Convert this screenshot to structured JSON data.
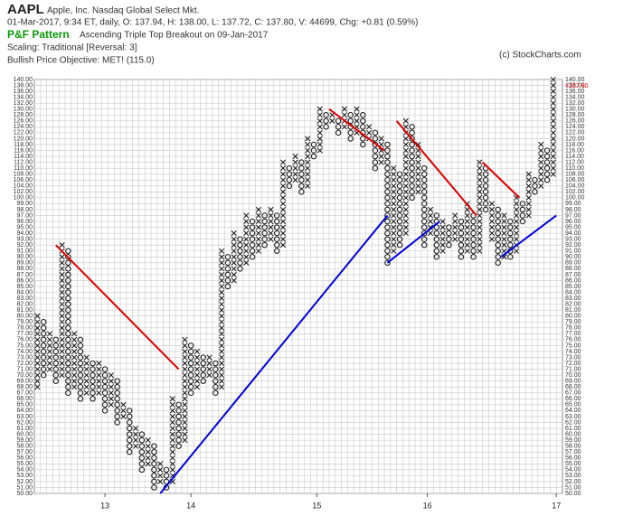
{
  "header": {
    "symbol": "AAPL",
    "company": "Apple, Inc.  Nasdaq Global Select Mkt.",
    "quote": "01-Mar-2017, 9:34 ET, daily, O: 137.94, H: 138.00, L: 137.72, C: 137.80, V: 44699, Chg: +0.81 (0.59%)",
    "pattern_label": "P&F Pattern",
    "pattern": "Ascending Triple Top Breakout on 09-Jan-2017",
    "scaling": "Scaling: Traditional [Reversal: 3]",
    "objective": "Bullish Price Objective: MET! (115.0)",
    "copyright": "(c) StockCharts.com"
  },
  "chart_data": {
    "type": "pnf",
    "x_color": "#111",
    "o_color": "#111",
    "grid": true,
    "last_price": {
      "value": 137.8,
      "label": "<137.80",
      "color": "#e00"
    },
    "xlim": [
      0,
      86
    ],
    "xticks": [
      {
        "value": 11.5,
        "label": "13"
      },
      {
        "value": 25.5,
        "label": "14"
      },
      {
        "value": 46,
        "label": "15"
      },
      {
        "value": 64,
        "label": "16"
      },
      {
        "value": 85,
        "label": "17"
      }
    ],
    "ylim": [
      50,
      140
    ],
    "yticks": [
      {
        "value": 50,
        "label": "50.00"
      },
      {
        "value": 51,
        "label": "51.00"
      },
      {
        "value": 52,
        "label": "52.00"
      },
      {
        "value": 53,
        "label": "53.00"
      },
      {
        "value": 54,
        "label": "54.00"
      },
      {
        "value": 55,
        "label": "55.00"
      },
      {
        "value": 56,
        "label": "56.00"
      },
      {
        "value": 57,
        "label": "57.00"
      },
      {
        "value": 58,
        "label": "58.00"
      },
      {
        "value": 59,
        "label": "59.00"
      },
      {
        "value": 60,
        "label": "60.00"
      },
      {
        "value": 61,
        "label": "61.00"
      },
      {
        "value": 62,
        "label": "62.00"
      },
      {
        "value": 63,
        "label": "63.00"
      },
      {
        "value": 64,
        "label": "64.00"
      },
      {
        "value": 65,
        "label": "65.00"
      },
      {
        "value": 66,
        "label": "66.00"
      },
      {
        "value": 67,
        "label": "67.00"
      },
      {
        "value": 68,
        "label": "68.00"
      },
      {
        "value": 69,
        "label": "69.00"
      },
      {
        "value": 70,
        "label": "70.00"
      },
      {
        "value": 71,
        "label": "71.00"
      },
      {
        "value": 72,
        "label": "72.00"
      },
      {
        "value": 73,
        "label": "73.00"
      },
      {
        "value": 74,
        "label": "74.00"
      },
      {
        "value": 75,
        "label": "75.00"
      },
      {
        "value": 76,
        "label": "76.00"
      },
      {
        "value": 77,
        "label": "77.00"
      },
      {
        "value": 78,
        "label": "78.00"
      },
      {
        "value": 79,
        "label": "79.00"
      },
      {
        "value": 80,
        "label": "80.00"
      },
      {
        "value": 81,
        "label": "81.00"
      },
      {
        "value": 82,
        "label": "82.00"
      },
      {
        "value": 83,
        "label": "83.00"
      },
      {
        "value": 84,
        "label": "84.00"
      },
      {
        "value": 85,
        "label": "85.00"
      },
      {
        "value": 86,
        "label": "86.00"
      },
      {
        "value": 87,
        "label": "87.00"
      },
      {
        "value": 88,
        "label": "88.00"
      },
      {
        "value": 89,
        "label": "89.00"
      },
      {
        "value": 90,
        "label": "90.00"
      },
      {
        "value": 91,
        "label": "91.00"
      },
      {
        "value": 92,
        "label": "92.00"
      },
      {
        "value": 93,
        "label": "93.00"
      },
      {
        "value": 94,
        "label": "94.00"
      },
      {
        "value": 95,
        "label": "95.00"
      },
      {
        "value": 96,
        "label": "96.00"
      },
      {
        "value": 97,
        "label": "97.00"
      },
      {
        "value": 98,
        "label": "98.00"
      },
      {
        "value": 99,
        "label": "99.00"
      },
      {
        "value": 100,
        "label": "100.00"
      },
      {
        "value": 102,
        "label": "102.00"
      },
      {
        "value": 104,
        "label": "104.00"
      },
      {
        "value": 106,
        "label": "106.00"
      },
      {
        "value": 108,
        "label": "108.00"
      },
      {
        "value": 110,
        "label": "110.00"
      },
      {
        "value": 112,
        "label": "112.00"
      },
      {
        "value": 114,
        "label": "114.00"
      },
      {
        "value": 116,
        "label": "116.00"
      },
      {
        "value": 118,
        "label": "118.00"
      },
      {
        "value": 120,
        "label": "120.00"
      },
      {
        "value": 122,
        "label": "122.00"
      },
      {
        "value": 124,
        "label": "124.00"
      },
      {
        "value": 126,
        "label": "126.00"
      },
      {
        "value": 128,
        "label": "128.00"
      },
      {
        "value": 130,
        "label": "130.00"
      },
      {
        "value": 132,
        "label": "132.00"
      },
      {
        "value": 134,
        "label": "134.00"
      },
      {
        "value": 136,
        "label": "136.00"
      },
      {
        "value": 138,
        "label": "138.00"
      },
      {
        "value": 140,
        "label": "140.00"
      }
    ],
    "columns": [
      {
        "kind": "X",
        "low": 68,
        "high": 80
      },
      {
        "kind": "O",
        "low": 70,
        "high": 79
      },
      {
        "kind": "X",
        "low": 71,
        "high": 77
      },
      {
        "kind": "O",
        "low": 69,
        "high": 76
      },
      {
        "kind": "X",
        "low": 70,
        "high": 92
      },
      {
        "kind": "O",
        "low": 67,
        "high": 91
      },
      {
        "kind": "X",
        "low": 68,
        "high": 77
      },
      {
        "kind": "O",
        "low": 66,
        "high": 76
      },
      {
        "kind": "X",
        "low": 67,
        "high": 73
      },
      {
        "kind": "O",
        "low": 66,
        "high": 72
      },
      {
        "kind": "X",
        "low": 67,
        "high": 72
      },
      {
        "kind": "O",
        "low": 64,
        "high": 71
      },
      {
        "kind": "X",
        "low": 65,
        "high": 70
      },
      {
        "kind": "O",
        "low": 62,
        "high": 69
      },
      {
        "kind": "X",
        "low": 63,
        "high": 65
      },
      {
        "kind": "O",
        "low": 57,
        "high": 64
      },
      {
        "kind": "X",
        "low": 58,
        "high": 61
      },
      {
        "kind": "O",
        "low": 54,
        "high": 60
      },
      {
        "kind": "X",
        "low": 55,
        "high": 59
      },
      {
        "kind": "O",
        "low": 51,
        "high": 58
      },
      {
        "kind": "X",
        "low": 52,
        "high": 55
      },
      {
        "kind": "O",
        "low": 51,
        "high": 54
      },
      {
        "kind": "X",
        "low": 52,
        "high": 66
      },
      {
        "kind": "O",
        "low": 58,
        "high": 65
      },
      {
        "kind": "X",
        "low": 59,
        "high": 76
      },
      {
        "kind": "O",
        "low": 67,
        "high": 75
      },
      {
        "kind": "X",
        "low": 68,
        "high": 74
      },
      {
        "kind": "O",
        "low": 69,
        "high": 73
      },
      {
        "kind": "X",
        "low": 70,
        "high": 73
      },
      {
        "kind": "O",
        "low": 67,
        "high": 72
      },
      {
        "kind": "X",
        "low": 68,
        "high": 91
      },
      {
        "kind": "O",
        "low": 85,
        "high": 90
      },
      {
        "kind": "X",
        "low": 86,
        "high": 94
      },
      {
        "kind": "O",
        "low": 88,
        "high": 93
      },
      {
        "kind": "X",
        "low": 89,
        "high": 97
      },
      {
        "kind": "O",
        "low": 90,
        "high": 96
      },
      {
        "kind": "X",
        "low": 91,
        "high": 98
      },
      {
        "kind": "O",
        "low": 92,
        "high": 97
      },
      {
        "kind": "X",
        "low": 93,
        "high": 98
      },
      {
        "kind": "O",
        "low": 91,
        "high": 97
      },
      {
        "kind": "X",
        "low": 92,
        "high": 112
      },
      {
        "kind": "O",
        "low": 104,
        "high": 110
      },
      {
        "kind": "X",
        "low": 106,
        "high": 114
      },
      {
        "kind": "O",
        "low": 102,
        "high": 112
      },
      {
        "kind": "X",
        "low": 104,
        "high": 120
      },
      {
        "kind": "O",
        "low": 114,
        "high": 118
      },
      {
        "kind": "X",
        "low": 116,
        "high": 130
      },
      {
        "kind": "O",
        "low": 124,
        "high": 128
      },
      {
        "kind": "X",
        "low": 126,
        "high": 128
      },
      {
        "kind": "O",
        "low": 122,
        "high": 126
      },
      {
        "kind": "X",
        "low": 124,
        "high": 130
      },
      {
        "kind": "O",
        "low": 120,
        "high": 128
      },
      {
        "kind": "X",
        "low": 122,
        "high": 130
      },
      {
        "kind": "O",
        "low": 118,
        "high": 128
      },
      {
        "kind": "X",
        "low": 120,
        "high": 124
      },
      {
        "kind": "O",
        "low": 110,
        "high": 122
      },
      {
        "kind": "X",
        "low": 112,
        "high": 120
      },
      {
        "kind": "O",
        "low": 89,
        "high": 118
      },
      {
        "kind": "X",
        "low": 91,
        "high": 110
      },
      {
        "kind": "O",
        "low": 92,
        "high": 108
      },
      {
        "kind": "X",
        "low": 94,
        "high": 126
      },
      {
        "kind": "O",
        "low": 100,
        "high": 124
      },
      {
        "kind": "X",
        "low": 102,
        "high": 118
      },
      {
        "kind": "O",
        "low": 92,
        "high": 110
      },
      {
        "kind": "X",
        "low": 94,
        "high": 98
      },
      {
        "kind": "O",
        "low": 90,
        "high": 97
      },
      {
        "kind": "X",
        "low": 91,
        "high": 96
      },
      {
        "kind": "O",
        "low": 92,
        "high": 95
      },
      {
        "kind": "X",
        "low": 93,
        "high": 97
      },
      {
        "kind": "O",
        "low": 90,
        "high": 96
      },
      {
        "kind": "X",
        "low": 91,
        "high": 99
      },
      {
        "kind": "O",
        "low": 90,
        "high": 97
      },
      {
        "kind": "X",
        "low": 91,
        "high": 112
      },
      {
        "kind": "O",
        "low": 98,
        "high": 110
      },
      {
        "kind": "X",
        "low": 93,
        "high": 99
      },
      {
        "kind": "O",
        "low": 89,
        "high": 98
      },
      {
        "kind": "X",
        "low": 90,
        "high": 97
      },
      {
        "kind": "O",
        "low": 90,
        "high": 96
      },
      {
        "kind": "X",
        "low": 91,
        "high": 100
      },
      {
        "kind": "O",
        "low": 96,
        "high": 99
      },
      {
        "kind": "X",
        "low": 97,
        "high": 108
      },
      {
        "kind": "O",
        "low": 102,
        "high": 106
      },
      {
        "kind": "X",
        "low": 104,
        "high": 118
      },
      {
        "kind": "O",
        "low": 106,
        "high": 116
      },
      {
        "kind": "X",
        "low": 108,
        "high": 140
      }
    ],
    "trendlines": [
      {
        "color": "#e00000",
        "x": [
          3.5,
          23.5
        ],
        "y": [
          92,
          71
        ]
      },
      {
        "color": "#0000e0",
        "x": [
          20.5,
          57.5
        ],
        "y": [
          50,
          97
        ]
      },
      {
        "color": "#e00000",
        "x": [
          48,
          57
        ],
        "y": [
          130,
          116
        ]
      },
      {
        "color": "#e00000",
        "x": [
          59,
          72
        ],
        "y": [
          126,
          97
        ]
      },
      {
        "color": "#0000e0",
        "x": [
          57.5,
          66
        ],
        "y": [
          89,
          96
        ]
      },
      {
        "color": "#e00000",
        "x": [
          73,
          79
        ],
        "y": [
          112,
          100
        ]
      },
      {
        "color": "#0000e0",
        "x": [
          76,
          85
        ],
        "y": [
          90,
          97
        ]
      }
    ]
  }
}
